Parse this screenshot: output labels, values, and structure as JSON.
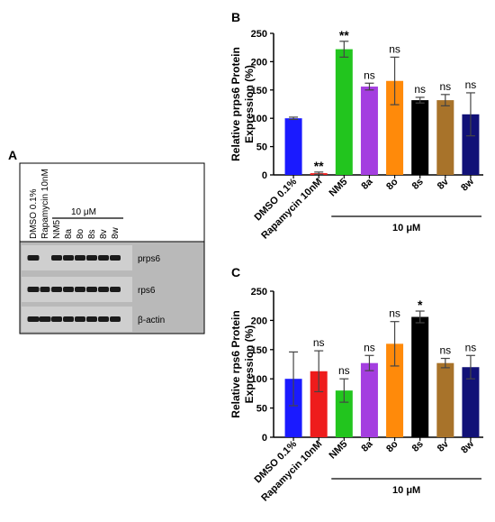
{
  "figure": {
    "panel_a": {
      "letter": "A",
      "lane_labels": [
        "DMSO 0.1%",
        "Rapamycin 10nM",
        "NM5",
        "8a",
        "8o",
        "8s",
        "8v",
        "8w"
      ],
      "concentration": "10 μM",
      "bands": [
        "prps6",
        "rps6",
        "β-actin"
      ]
    }
  },
  "chart_data": [
    {
      "panel": "B",
      "type": "bar",
      "categories": [
        "DMSO 0.1%",
        "Rapamycin 10nM",
        "NM5",
        "8a",
        "8o",
        "8s",
        "8v",
        "8w"
      ],
      "values": [
        100,
        3,
        222,
        156,
        166,
        132,
        132,
        107
      ],
      "errors": [
        2,
        2,
        14,
        6,
        42,
        5,
        10,
        38
      ],
      "significance": [
        "",
        "**",
        "**",
        "ns",
        "ns",
        "ns",
        "ns",
        "ns"
      ],
      "colors": [
        "#1a1aff",
        "#ee1c1c",
        "#22c51e",
        "#a43ee0",
        "#ff8a0a",
        "#000000",
        "#a8732a",
        "#111177"
      ],
      "ylabel": "Relative prps6 Protein Expression (%)",
      "ylim": [
        0,
        250
      ],
      "yticks": [
        0,
        50,
        100,
        150,
        200,
        250
      ],
      "group_label": "10 μM"
    },
    {
      "panel": "C",
      "type": "bar",
      "categories": [
        "DMSO 0.1%",
        "Rapamycin 10nM",
        "NM5",
        "8a",
        "8o",
        "8s",
        "8v",
        "8w"
      ],
      "values": [
        100,
        113,
        80,
        127,
        160,
        206,
        127,
        120
      ],
      "errors": [
        46,
        35,
        20,
        13,
        38,
        10,
        8,
        20
      ],
      "significance": [
        "",
        "ns",
        "ns",
        "ns",
        "ns",
        "*",
        "ns",
        "ns"
      ],
      "colors": [
        "#1a1aff",
        "#ee1c1c",
        "#22c51e",
        "#a43ee0",
        "#ff8a0a",
        "#000000",
        "#a8732a",
        "#111177"
      ],
      "ylabel": "Relative rps6 Protein Expression (%)",
      "ylim": [
        0,
        250
      ],
      "yticks": [
        0,
        50,
        100,
        150,
        200,
        250
      ],
      "group_label": "10 μM"
    }
  ]
}
